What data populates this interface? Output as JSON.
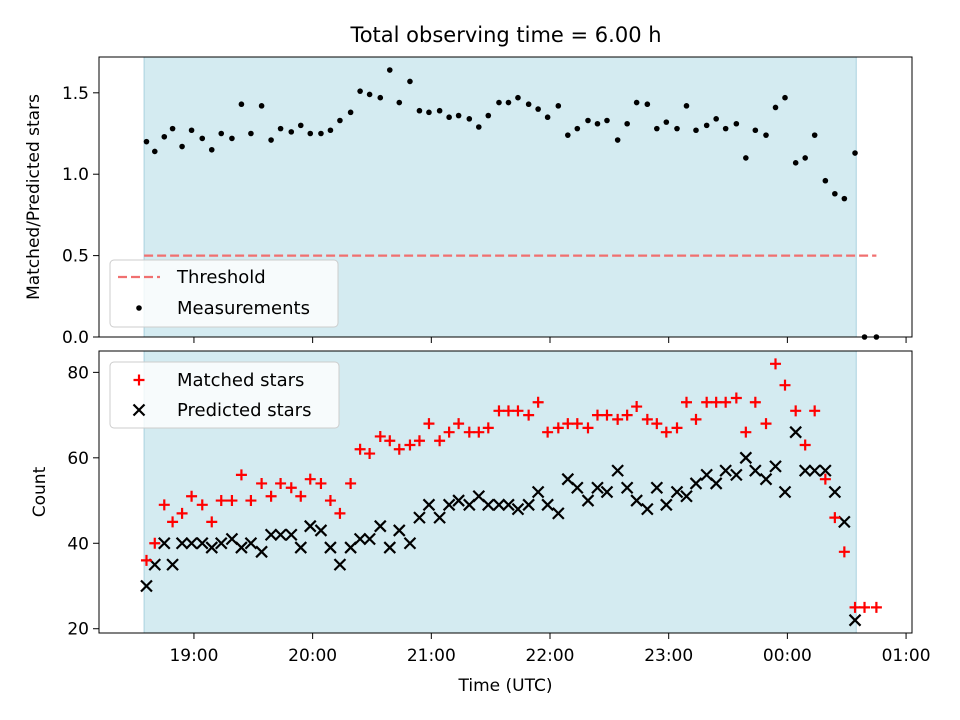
{
  "colors": {
    "observing_window": "#d4ebf1",
    "threshold": "#f07070",
    "measurement": "#000000",
    "matched": "#ff0000",
    "predicted": "#000000"
  },
  "chart_data": [
    {
      "type": "scatter",
      "title": "Total observing time = 6.00 h",
      "xlabel": "",
      "ylabel": "Matched/Predicted stars",
      "ylim": [
        0,
        1.72
      ],
      "yticks": [
        "0.0",
        "0.5",
        "1.0",
        "1.5"
      ],
      "observing_window_h": [
        18.58,
        0.58
      ],
      "threshold": {
        "label": "Threshold",
        "value": 0.5,
        "x_range_h": [
          18.58,
          0.75
        ]
      },
      "legend": {
        "placement": "lower-left",
        "entries": [
          "Threshold",
          "Measurements"
        ]
      },
      "series": [
        {
          "name": "Measurements",
          "marker": "dot",
          "x_h": [
            18.6,
            18.67,
            18.75,
            18.82,
            18.9,
            18.98,
            19.07,
            19.15,
            19.23,
            19.32,
            19.4,
            19.48,
            19.57,
            19.65,
            19.73,
            19.82,
            19.9,
            19.98,
            20.07,
            20.15,
            20.23,
            20.32,
            20.4,
            20.48,
            20.57,
            20.65,
            20.73,
            20.82,
            20.9,
            20.98,
            21.07,
            21.15,
            21.23,
            21.32,
            21.4,
            21.48,
            21.57,
            21.65,
            21.73,
            21.82,
            21.9,
            21.98,
            22.07,
            22.15,
            22.23,
            22.32,
            22.4,
            22.48,
            22.57,
            22.65,
            22.73,
            22.82,
            22.9,
            22.98,
            23.07,
            23.15,
            23.23,
            23.32,
            23.4,
            23.48,
            23.57,
            23.65,
            23.73,
            23.82,
            23.9,
            23.98,
            24.07,
            24.15,
            24.23,
            24.32,
            24.4,
            24.48,
            24.57,
            24.65,
            24.75
          ],
          "y": [
            1.2,
            1.14,
            1.23,
            1.28,
            1.17,
            1.27,
            1.22,
            1.15,
            1.25,
            1.22,
            1.43,
            1.25,
            1.42,
            1.21,
            1.28,
            1.26,
            1.3,
            1.25,
            1.25,
            1.27,
            1.33,
            1.38,
            1.51,
            1.49,
            1.47,
            1.64,
            1.44,
            1.57,
            1.39,
            1.38,
            1.39,
            1.35,
            1.36,
            1.34,
            1.29,
            1.36,
            1.44,
            1.44,
            1.47,
            1.43,
            1.4,
            1.35,
            1.42,
            1.24,
            1.28,
            1.33,
            1.31,
            1.33,
            1.21,
            1.31,
            1.44,
            1.43,
            1.28,
            1.32,
            1.28,
            1.42,
            1.27,
            1.3,
            1.34,
            1.28,
            1.31,
            1.1,
            1.27,
            1.24,
            1.41,
            1.47,
            1.07,
            1.1,
            1.24,
            0.96,
            0.88,
            0.85,
            1.13,
            0.0,
            0.0
          ]
        }
      ]
    },
    {
      "type": "scatter",
      "title": "",
      "xlabel": "Time (UTC)",
      "ylabel": "Count",
      "ylim": [
        19,
        85
      ],
      "yticks": [
        "20",
        "40",
        "60",
        "80"
      ],
      "xlim_h": [
        18.2,
        25.05
      ],
      "xticks": [
        "19:00",
        "20:00",
        "21:00",
        "22:00",
        "23:00",
        "00:00",
        "01:00"
      ],
      "observing_window_h": [
        18.58,
        0.58
      ],
      "legend": {
        "placement": "upper-left",
        "entries": [
          "Matched stars",
          "Predicted stars"
        ]
      },
      "series": [
        {
          "name": "Matched stars",
          "marker": "plus",
          "x_h": [
            18.6,
            18.67,
            18.75,
            18.82,
            18.9,
            18.98,
            19.07,
            19.15,
            19.23,
            19.32,
            19.4,
            19.48,
            19.57,
            19.65,
            19.73,
            19.82,
            19.9,
            19.98,
            20.07,
            20.15,
            20.23,
            20.32,
            20.4,
            20.48,
            20.57,
            20.65,
            20.73,
            20.82,
            20.9,
            20.98,
            21.07,
            21.15,
            21.23,
            21.32,
            21.4,
            21.48,
            21.57,
            21.65,
            21.73,
            21.82,
            21.9,
            21.98,
            22.07,
            22.15,
            22.23,
            22.32,
            22.4,
            22.48,
            22.57,
            22.65,
            22.73,
            22.82,
            22.9,
            22.98,
            23.07,
            23.15,
            23.23,
            23.32,
            23.4,
            23.48,
            23.57,
            23.65,
            23.73,
            23.82,
            23.9,
            23.98,
            24.07,
            24.15,
            24.23,
            24.32,
            24.4,
            24.48,
            24.57,
            24.65,
            24.75
          ],
          "y": [
            36,
            40,
            49,
            45,
            47,
            51,
            49,
            45,
            50,
            50,
            56,
            50,
            54,
            51,
            54,
            53,
            51,
            55,
            54,
            50,
            47,
            54,
            62,
            61,
            65,
            64,
            62,
            63,
            64,
            68,
            64,
            66,
            68,
            66,
            66,
            67,
            71,
            71,
            71,
            70,
            73,
            66,
            67,
            68,
            68,
            67,
            70,
            70,
            69,
            70,
            72,
            69,
            68,
            66,
            67,
            73,
            69,
            73,
            73,
            73,
            74,
            66,
            73,
            68,
            82,
            77,
            71,
            63,
            71,
            55,
            46,
            38,
            25,
            25,
            25
          ]
        },
        {
          "name": "Predicted stars",
          "marker": "x",
          "x_h": [
            18.6,
            18.67,
            18.75,
            18.82,
            18.9,
            18.98,
            19.07,
            19.15,
            19.23,
            19.32,
            19.4,
            19.48,
            19.57,
            19.65,
            19.73,
            19.82,
            19.9,
            19.98,
            20.07,
            20.15,
            20.23,
            20.32,
            20.4,
            20.48,
            20.57,
            20.65,
            20.73,
            20.82,
            20.9,
            20.98,
            21.07,
            21.15,
            21.23,
            21.32,
            21.4,
            21.48,
            21.57,
            21.65,
            21.73,
            21.82,
            21.9,
            21.98,
            22.07,
            22.15,
            22.23,
            22.32,
            22.4,
            22.48,
            22.57,
            22.65,
            22.73,
            22.82,
            22.9,
            22.98,
            23.07,
            23.15,
            23.23,
            23.32,
            23.4,
            23.48,
            23.57,
            23.65,
            23.73,
            23.82,
            23.9,
            23.98,
            24.07,
            24.15,
            24.23,
            24.32,
            24.4,
            24.48,
            24.57
          ],
          "y": [
            30,
            35,
            40,
            35,
            40,
            40,
            40,
            39,
            40,
            41,
            39,
            40,
            38,
            42,
            42,
            42,
            39,
            44,
            43,
            39,
            35,
            39,
            41,
            41,
            44,
            39,
            43,
            40,
            46,
            49,
            46,
            49,
            50,
            49,
            51,
            49,
            49,
            49,
            48,
            49,
            52,
            49,
            47,
            55,
            53,
            50,
            53,
            52,
            57,
            53,
            50,
            48,
            53,
            49,
            52,
            51,
            54,
            56,
            54,
            57,
            56,
            60,
            57,
            55,
            58,
            52,
            66,
            57,
            57,
            57,
            52,
            45,
            22
          ]
        }
      ]
    }
  ]
}
